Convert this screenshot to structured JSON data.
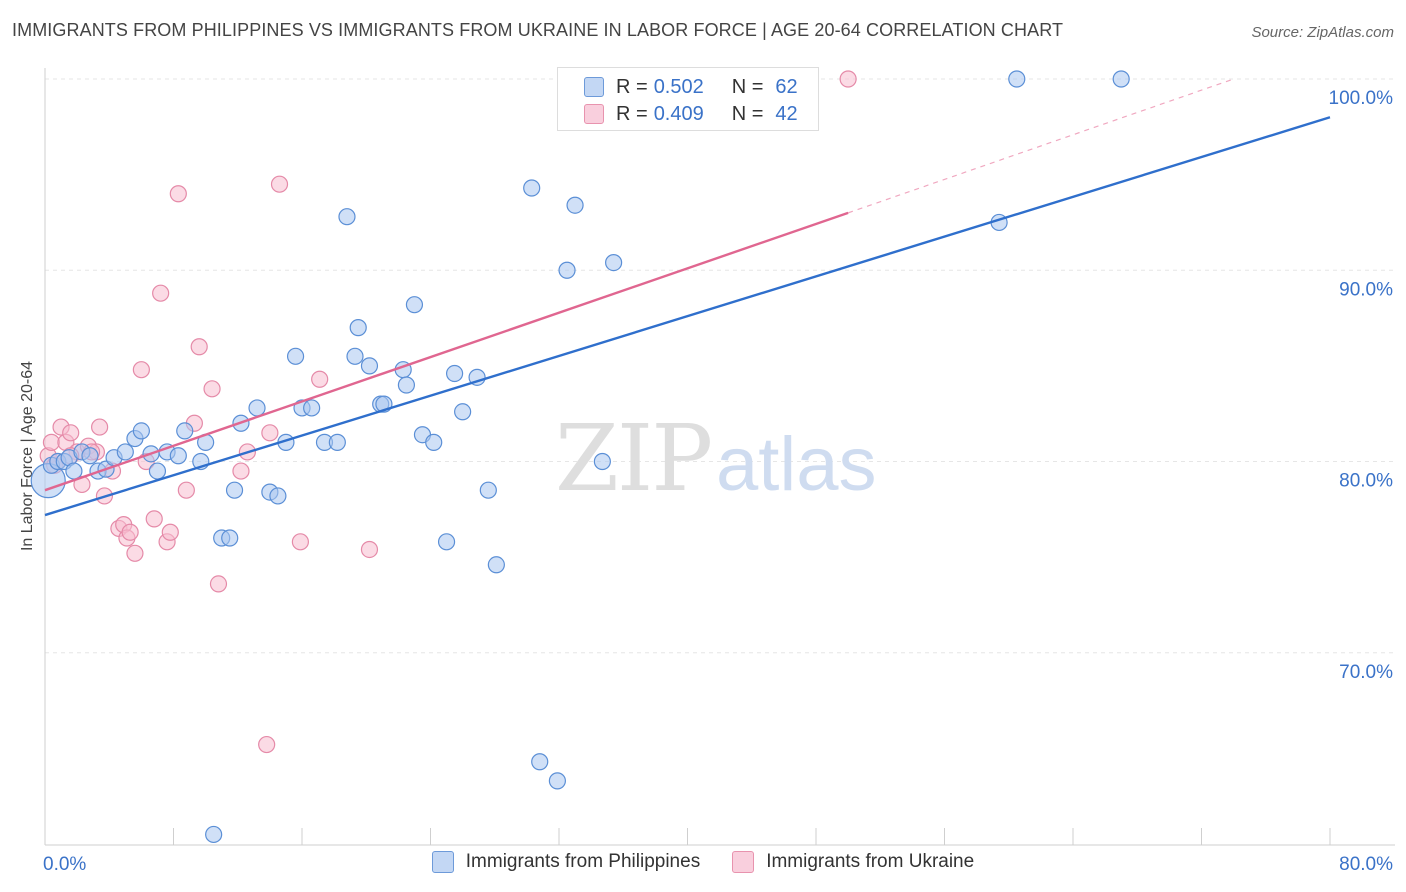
{
  "header": {
    "title": "IMMIGRANTS FROM PHILIPPINES VS IMMIGRANTS FROM UKRAINE IN LABOR FORCE | AGE 20-64 CORRELATION CHART",
    "source": "Source: ZipAtlas.com"
  },
  "watermark": {
    "zip": "ZIP",
    "atlas": "atlas"
  },
  "legend": {
    "rows": [
      {
        "r_label": "R =",
        "r_value": "0.502",
        "n_label": "N =",
        "n_value": "62"
      },
      {
        "r_label": "R =",
        "r_value": "0.409",
        "n_label": "N =",
        "n_value": "42"
      }
    ]
  },
  "colors": {
    "philippines_fill": "#a9c6f0",
    "philippines_stroke": "#5b8fd6",
    "philippines_line": "#2f6fcc",
    "ukraine_fill": "#f7bdd0",
    "ukraine_stroke": "#e58aa8",
    "ukraine_line": "#e06690",
    "axis_text": "#3a72c8",
    "grid": "#e6e6e6"
  },
  "chart_data": {
    "type": "scatter",
    "title": "IMMIGRANTS FROM PHILIPPINES VS IMMIGRANTS FROM UKRAINE IN LABOR FORCE | AGE 20-64 CORRELATION CHART",
    "xlabel": "",
    "ylabel": "In Labor Force | Age 20-64",
    "xlim": [
      0,
      80
    ],
    "ylim": [
      60,
      100
    ],
    "x_tick_labels": [
      "0.0%",
      "80.0%"
    ],
    "y_ticks": [
      70,
      80,
      90,
      100
    ],
    "y_tick_labels": [
      "70.0%",
      "80.0%",
      "90.0%",
      "100.0%"
    ],
    "grid": true,
    "legend_position": "top-center",
    "series": [
      {
        "name": "Immigrants from Philippines",
        "points": [
          [
            0.2,
            79.0
          ],
          [
            0.4,
            79.8
          ],
          [
            0.8,
            80.0
          ],
          [
            1.2,
            80.0
          ],
          [
            1.5,
            80.2
          ],
          [
            1.8,
            79.5
          ],
          [
            2.3,
            80.5
          ],
          [
            2.8,
            80.3
          ],
          [
            3.3,
            79.5
          ],
          [
            3.8,
            79.6
          ],
          [
            4.3,
            80.2
          ],
          [
            5.0,
            80.5
          ],
          [
            5.6,
            81.2
          ],
          [
            6.0,
            81.6
          ],
          [
            6.6,
            80.4
          ],
          [
            7.0,
            79.5
          ],
          [
            7.6,
            80.5
          ],
          [
            8.3,
            80.3
          ],
          [
            8.7,
            81.6
          ],
          [
            9.7,
            80.0
          ],
          [
            10.0,
            81.0
          ],
          [
            11.0,
            76.0
          ],
          [
            11.5,
            76.0
          ],
          [
            11.8,
            78.5
          ],
          [
            12.2,
            82.0
          ],
          [
            13.2,
            82.8
          ],
          [
            14.0,
            78.4
          ],
          [
            14.5,
            78.2
          ],
          [
            15.0,
            81.0
          ],
          [
            15.6,
            85.5
          ],
          [
            16.0,
            82.8
          ],
          [
            16.6,
            82.8
          ],
          [
            17.4,
            81.0
          ],
          [
            18.2,
            81.0
          ],
          [
            18.8,
            92.8
          ],
          [
            19.3,
            85.5
          ],
          [
            19.5,
            87.0
          ],
          [
            20.2,
            85.0
          ],
          [
            20.9,
            83.0
          ],
          [
            21.1,
            83.0
          ],
          [
            22.3,
            84.8
          ],
          [
            22.5,
            84.0
          ],
          [
            23.0,
            88.2
          ],
          [
            23.5,
            81.4
          ],
          [
            24.2,
            81.0
          ],
          [
            25.0,
            75.8
          ],
          [
            25.5,
            84.6
          ],
          [
            26.0,
            82.6
          ],
          [
            26.9,
            84.4
          ],
          [
            27.6,
            78.5
          ],
          [
            28.1,
            74.6
          ],
          [
            30.3,
            94.3
          ],
          [
            30.8,
            64.3
          ],
          [
            31.9,
            63.3
          ],
          [
            32.5,
            90.0
          ],
          [
            33.0,
            93.4
          ],
          [
            34.7,
            80.0
          ],
          [
            35.4,
            90.4
          ],
          [
            59.4,
            92.5
          ],
          [
            60.5,
            100.0
          ],
          [
            67.0,
            100.0
          ],
          [
            10.5,
            60.5
          ]
        ],
        "trend": [
          [
            0,
            77.2
          ],
          [
            80,
            98.0
          ]
        ]
      },
      {
        "name": "Immigrants from Ukraine",
        "points": [
          [
            0.2,
            80.3
          ],
          [
            0.4,
            81.0
          ],
          [
            0.6,
            79.8
          ],
          [
            1.0,
            81.8
          ],
          [
            1.3,
            81.0
          ],
          [
            1.6,
            81.5
          ],
          [
            2.0,
            80.5
          ],
          [
            2.3,
            78.8
          ],
          [
            2.7,
            80.8
          ],
          [
            3.2,
            80.5
          ],
          [
            3.4,
            81.8
          ],
          [
            3.7,
            78.2
          ],
          [
            4.2,
            79.5
          ],
          [
            4.6,
            76.5
          ],
          [
            4.9,
            76.7
          ],
          [
            5.1,
            76.0
          ],
          [
            5.3,
            76.3
          ],
          [
            5.6,
            75.2
          ],
          [
            6.0,
            84.8
          ],
          [
            6.3,
            80.0
          ],
          [
            6.8,
            77.0
          ],
          [
            7.2,
            88.8
          ],
          [
            7.6,
            75.8
          ],
          [
            7.8,
            76.3
          ],
          [
            8.3,
            94.0
          ],
          [
            8.8,
            78.5
          ],
          [
            9.3,
            82.0
          ],
          [
            9.6,
            86.0
          ],
          [
            10.4,
            83.8
          ],
          [
            10.8,
            73.6
          ],
          [
            12.2,
            79.5
          ],
          [
            12.6,
            80.5
          ],
          [
            13.8,
            65.2
          ],
          [
            14.0,
            81.5
          ],
          [
            14.6,
            94.5
          ],
          [
            15.9,
            75.8
          ],
          [
            17.1,
            84.3
          ],
          [
            20.2,
            75.4
          ],
          [
            50.0,
            100.0
          ],
          [
            0.8,
            80.0
          ],
          [
            1.6,
            80.3
          ],
          [
            2.9,
            80.5
          ]
        ],
        "trend": [
          [
            0,
            78.5
          ],
          [
            50.0,
            93.0
          ]
        ],
        "trend_extension": [
          [
            50.0,
            93.0
          ],
          [
            74.0,
            100.0
          ]
        ]
      }
    ]
  }
}
